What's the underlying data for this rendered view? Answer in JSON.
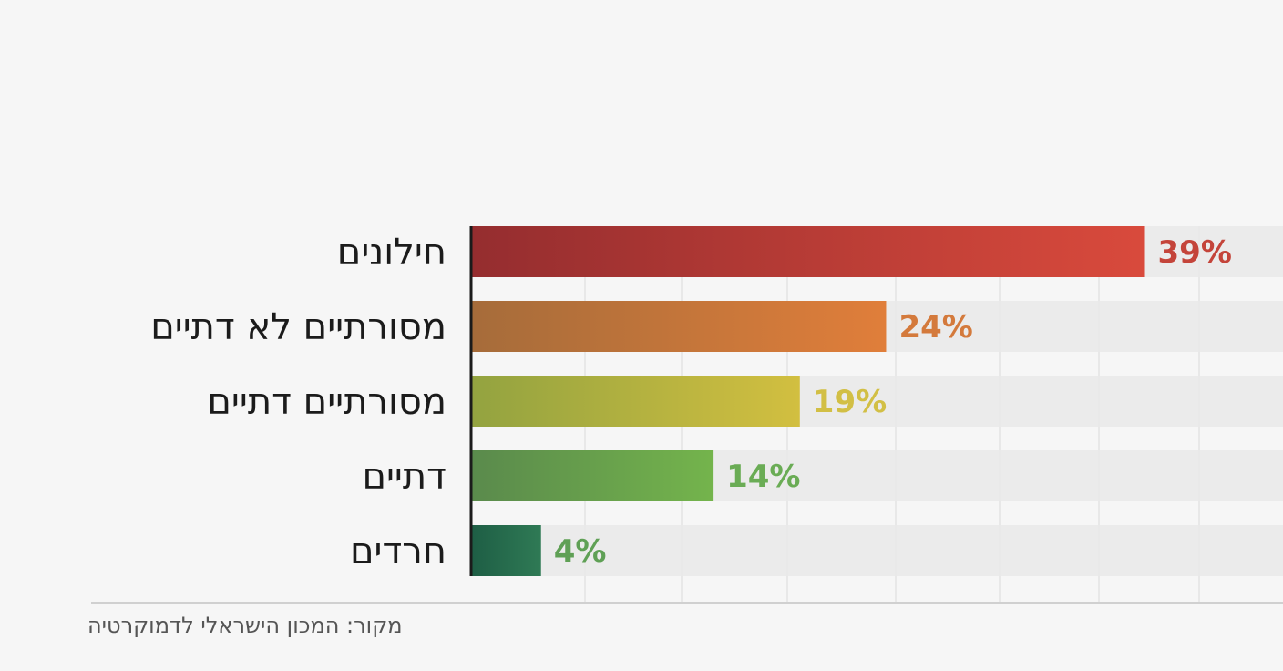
{
  "chart_data": {
    "type": "bar",
    "orientation": "horizontal",
    "categories": [
      "חילונים",
      "מסורתיים לא דתיים",
      "מסורתיים דתיים",
      "דתיים",
      "חרדים"
    ],
    "values": [
      39,
      24,
      19,
      14,
      4
    ],
    "value_labels": [
      "39%",
      "24%",
      "19%",
      "14%",
      "4%"
    ],
    "xlim": [
      0,
      47
    ],
    "grid": true,
    "bar_gradients": [
      [
        "#952d2f",
        "#d94a3c"
      ],
      [
        "#a66c3a",
        "#e07e3a"
      ],
      [
        "#93a340",
        "#d2bf40"
      ],
      [
        "#5a8a4c",
        "#74b44c"
      ],
      [
        "#1e5e45",
        "#2f7a55"
      ]
    ],
    "label_colors": [
      "#c4443a",
      "#d47a3c",
      "#d2bf45",
      "#6aac55",
      "#5fa055"
    ]
  },
  "source": "מקור: המכון הישראלי לדמוקרטיה"
}
